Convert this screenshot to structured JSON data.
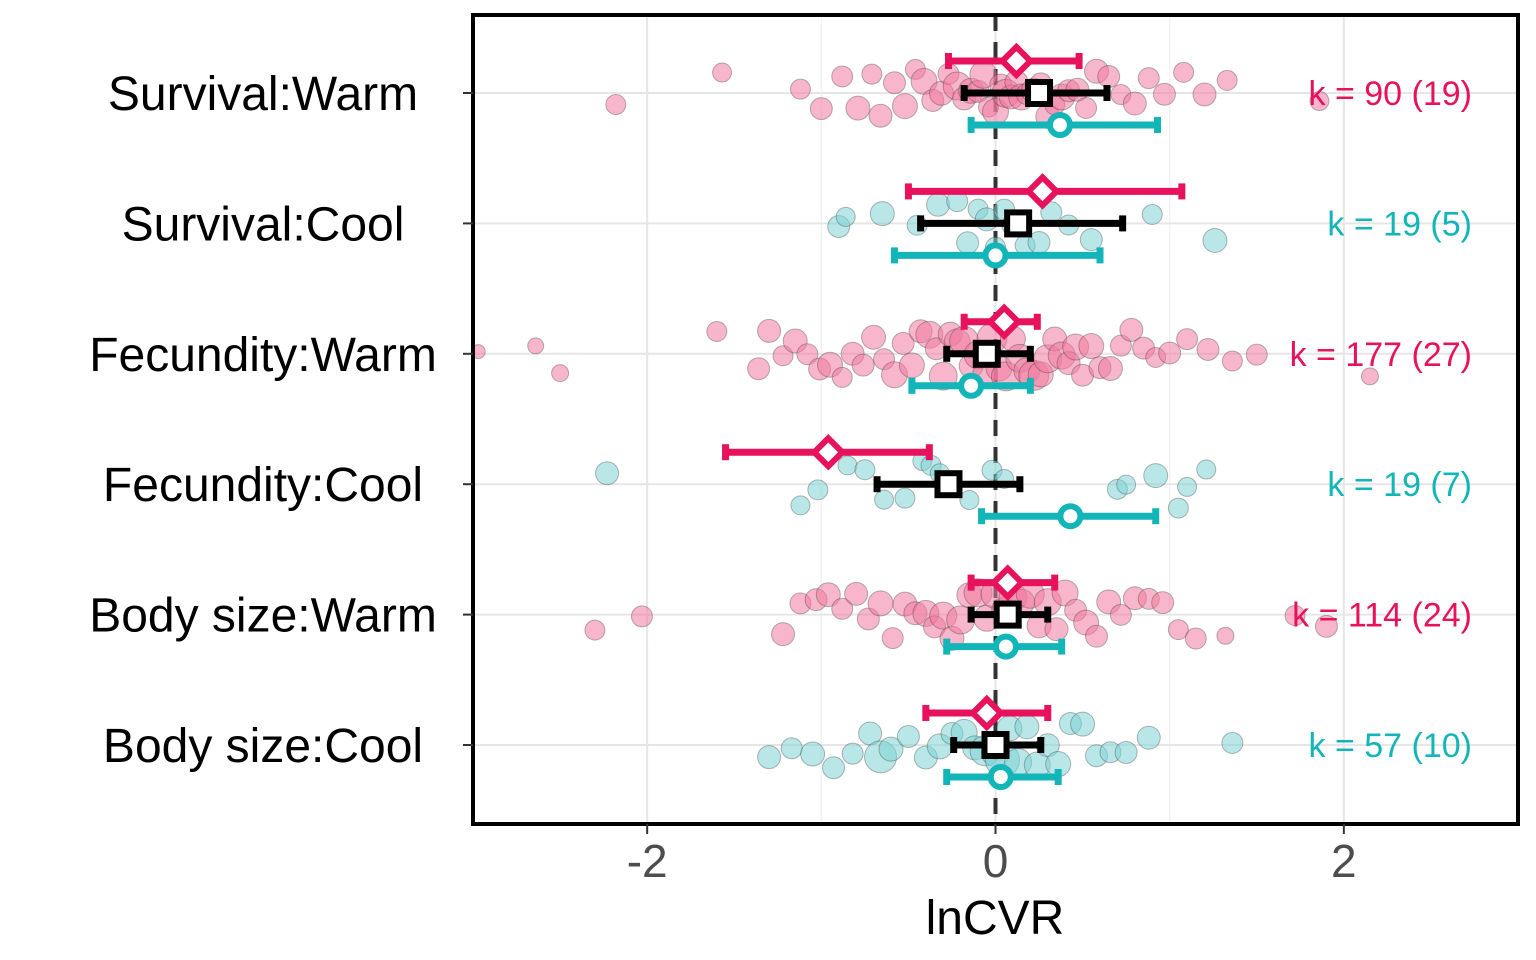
{
  "chart_data": {
    "type": "scatter",
    "subtype": "orchard-plot",
    "xlabel": "lnCVR",
    "ylabel": "",
    "xlim": [
      -3.0,
      3.0
    ],
    "x_ticks": [
      -2,
      0,
      2
    ],
    "reference_line_x": 0,
    "grid": true,
    "colors": {
      "warm": "#e8115c",
      "cool": "#12b5b8",
      "overall": "#000000",
      "warm_fill": "#f07aa1",
      "cool_fill": "#7fd4d5"
    },
    "categories": [
      "Survival:Warm",
      "Survival:Cool",
      "Fecundity:Warm",
      "Fecundity:Cool",
      "Body size:Warm",
      "Body size:Cool"
    ],
    "rows": [
      {
        "label": "Survival:Warm",
        "group": "warm",
        "k_label": "k = 90 (19)",
        "diamond": {
          "est": 0.12,
          "lo": -0.27,
          "hi": 0.48
        },
        "square": {
          "est": 0.25,
          "lo": -0.18,
          "hi": 0.64
        },
        "circle": {
          "est": 0.37,
          "lo": -0.14,
          "hi": 0.93
        },
        "points": [
          {
            "x": -2.18,
            "s": 0.6
          },
          {
            "x": -1.57,
            "s": 0.55
          },
          {
            "x": -1.12,
            "s": 0.6
          },
          {
            "x": -1.0,
            "s": 0.7
          },
          {
            "x": -0.88,
            "s": 0.65
          },
          {
            "x": -0.79,
            "s": 0.8
          },
          {
            "x": -0.71,
            "s": 0.6
          },
          {
            "x": -0.66,
            "s": 0.75
          },
          {
            "x": -0.58,
            "s": 0.7
          },
          {
            "x": -0.52,
            "s": 0.85
          },
          {
            "x": -0.46,
            "s": 0.6
          },
          {
            "x": -0.41,
            "s": 0.9
          },
          {
            "x": -0.36,
            "s": 0.7
          },
          {
            "x": -0.31,
            "s": 0.8
          },
          {
            "x": -0.27,
            "s": 0.65
          },
          {
            "x": -0.22,
            "s": 1.0
          },
          {
            "x": -0.18,
            "s": 0.75
          },
          {
            "x": -0.14,
            "s": 0.85
          },
          {
            "x": -0.1,
            "s": 0.7
          },
          {
            "x": -0.07,
            "s": 0.95
          },
          {
            "x": -0.04,
            "s": 0.6
          },
          {
            "x": 0.0,
            "s": 0.9
          },
          {
            "x": 0.03,
            "s": 0.7
          },
          {
            "x": 0.06,
            "s": 1.0
          },
          {
            "x": 0.09,
            "s": 0.8
          },
          {
            "x": 0.12,
            "s": 0.75
          },
          {
            "x": 0.15,
            "s": 0.9
          },
          {
            "x": 0.18,
            "s": 0.65
          },
          {
            "x": 0.22,
            "s": 0.85
          },
          {
            "x": 0.26,
            "s": 0.7
          },
          {
            "x": 0.3,
            "s": 0.8
          },
          {
            "x": 0.34,
            "s": 0.6
          },
          {
            "x": 0.38,
            "s": 0.9
          },
          {
            "x": 0.42,
            "s": 0.7
          },
          {
            "x": 0.47,
            "s": 0.75
          },
          {
            "x": 0.52,
            "s": 0.65
          },
          {
            "x": 0.58,
            "s": 0.8
          },
          {
            "x": 0.65,
            "s": 0.7
          },
          {
            "x": 0.72,
            "s": 0.6
          },
          {
            "x": 0.8,
            "s": 0.75
          },
          {
            "x": 0.88,
            "s": 0.65
          },
          {
            "x": 0.97,
            "s": 0.7
          },
          {
            "x": 1.08,
            "s": 0.6
          },
          {
            "x": 1.2,
            "s": 0.75
          },
          {
            "x": 1.33,
            "s": 0.6
          },
          {
            "x": 1.86,
            "s": 0.55
          }
        ]
      },
      {
        "label": "Survival:Cool",
        "group": "cool",
        "k_label": "k = 19 (5)",
        "diamond": {
          "est": 0.27,
          "lo": -0.5,
          "hi": 1.07
        },
        "square": {
          "est": 0.13,
          "lo": -0.43,
          "hi": 0.73
        },
        "circle": {
          "est": 0.0,
          "lo": -0.58,
          "hi": 0.6
        },
        "points": [
          {
            "x": -0.9,
            "s": 0.7
          },
          {
            "x": -0.86,
            "s": 0.55
          },
          {
            "x": -0.65,
            "s": 0.8
          },
          {
            "x": -0.45,
            "s": 0.6
          },
          {
            "x": -0.33,
            "s": 0.75
          },
          {
            "x": -0.22,
            "s": 0.65
          },
          {
            "x": -0.16,
            "s": 0.7
          },
          {
            "x": -0.1,
            "s": 0.6
          },
          {
            "x": -0.05,
            "s": 0.75
          },
          {
            "x": 0.0,
            "s": 0.6
          },
          {
            "x": 0.05,
            "s": 0.65
          },
          {
            "x": 0.1,
            "s": 0.7
          },
          {
            "x": 0.17,
            "s": 0.6
          },
          {
            "x": 0.25,
            "s": 0.7
          },
          {
            "x": 0.32,
            "s": 0.65
          },
          {
            "x": 0.42,
            "s": 0.6
          },
          {
            "x": 0.55,
            "s": 0.7
          },
          {
            "x": 0.9,
            "s": 0.6
          },
          {
            "x": 1.26,
            "s": 0.8
          }
        ]
      },
      {
        "label": "Fecundity:Warm",
        "group": "warm",
        "k_label": "k = 177 (27)",
        "diamond": {
          "est": 0.05,
          "lo": -0.18,
          "hi": 0.24
        },
        "square": {
          "est": -0.05,
          "lo": -0.28,
          "hi": 0.2
        },
        "circle": {
          "est": -0.14,
          "lo": -0.48,
          "hi": 0.2
        },
        "points": [
          {
            "x": -2.97,
            "s": 0.3
          },
          {
            "x": -2.64,
            "s": 0.4
          },
          {
            "x": -2.5,
            "s": 0.45
          },
          {
            "x": -1.6,
            "s": 0.6
          },
          {
            "x": -1.36,
            "s": 0.7
          },
          {
            "x": -1.3,
            "s": 0.75
          },
          {
            "x": -1.22,
            "s": 0.6
          },
          {
            "x": -1.15,
            "s": 0.8
          },
          {
            "x": -1.08,
            "s": 0.65
          },
          {
            "x": -1.01,
            "s": 0.7
          },
          {
            "x": -0.95,
            "s": 0.85
          },
          {
            "x": -0.88,
            "s": 0.6
          },
          {
            "x": -0.82,
            "s": 0.75
          },
          {
            "x": -0.76,
            "s": 0.7
          },
          {
            "x": -0.7,
            "s": 0.8
          },
          {
            "x": -0.64,
            "s": 0.65
          },
          {
            "x": -0.58,
            "s": 0.9
          },
          {
            "x": -0.53,
            "s": 0.7
          },
          {
            "x": -0.48,
            "s": 0.85
          },
          {
            "x": -0.43,
            "s": 0.75
          },
          {
            "x": -0.38,
            "s": 0.95
          },
          {
            "x": -0.34,
            "s": 0.7
          },
          {
            "x": -0.3,
            "s": 1.0
          },
          {
            "x": -0.26,
            "s": 0.8
          },
          {
            "x": -0.22,
            "s": 0.9
          },
          {
            "x": -0.18,
            "s": 1.05
          },
          {
            "x": -0.14,
            "s": 0.8
          },
          {
            "x": -0.1,
            "s": 1.0
          },
          {
            "x": -0.06,
            "s": 0.85
          },
          {
            "x": -0.02,
            "s": 1.1
          },
          {
            "x": 0.02,
            "s": 0.9
          },
          {
            "x": 0.06,
            "s": 1.05
          },
          {
            "x": 0.1,
            "s": 0.85
          },
          {
            "x": 0.14,
            "s": 1.0
          },
          {
            "x": 0.18,
            "s": 0.9
          },
          {
            "x": 0.22,
            "s": 1.1
          },
          {
            "x": 0.26,
            "s": 0.85
          },
          {
            "x": 0.3,
            "s": 1.0
          },
          {
            "x": 0.34,
            "s": 0.8
          },
          {
            "x": 0.38,
            "s": 0.95
          },
          {
            "x": 0.42,
            "s": 0.75
          },
          {
            "x": 0.46,
            "s": 0.9
          },
          {
            "x": 0.5,
            "s": 0.7
          },
          {
            "x": 0.55,
            "s": 0.85
          },
          {
            "x": 0.6,
            "s": 0.7
          },
          {
            "x": 0.66,
            "s": 0.8
          },
          {
            "x": 0.72,
            "s": 0.65
          },
          {
            "x": 0.78,
            "s": 0.75
          },
          {
            "x": 0.85,
            "s": 0.7
          },
          {
            "x": 0.92,
            "s": 0.6
          },
          {
            "x": 1.0,
            "s": 0.7
          },
          {
            "x": 1.1,
            "s": 0.65
          },
          {
            "x": 1.22,
            "s": 0.7
          },
          {
            "x": 1.36,
            "s": 0.6
          },
          {
            "x": 1.5,
            "s": 0.65
          },
          {
            "x": 2.15,
            "s": 0.45
          }
        ]
      },
      {
        "label": "Fecundity:Cool",
        "group": "cool",
        "k_label": "k = 19 (7)",
        "diamond": {
          "est": -0.96,
          "lo": -1.55,
          "hi": -0.38
        },
        "square": {
          "est": -0.27,
          "lo": -0.68,
          "hi": 0.14
        },
        "circle": {
          "est": 0.43,
          "lo": -0.08,
          "hi": 0.92
        },
        "points": [
          {
            "x": -2.23,
            "s": 0.75
          },
          {
            "x": -1.12,
            "s": 0.55
          },
          {
            "x": -1.02,
            "s": 0.6
          },
          {
            "x": -0.85,
            "s": 0.55
          },
          {
            "x": -0.75,
            "s": 0.6
          },
          {
            "x": -0.64,
            "s": 0.55
          },
          {
            "x": -0.52,
            "s": 0.6
          },
          {
            "x": -0.42,
            "s": 0.55
          },
          {
            "x": -0.37,
            "s": 0.6
          },
          {
            "x": -0.32,
            "s": 0.55
          },
          {
            "x": -0.15,
            "s": 0.55
          },
          {
            "x": -0.02,
            "s": 0.6
          },
          {
            "x": 0.05,
            "s": 0.55
          },
          {
            "x": 0.7,
            "s": 0.6
          },
          {
            "x": 0.75,
            "s": 0.55
          },
          {
            "x": 0.92,
            "s": 0.8
          },
          {
            "x": 1.05,
            "s": 0.6
          },
          {
            "x": 1.1,
            "s": 0.55
          },
          {
            "x": 1.21,
            "s": 0.55
          }
        ]
      },
      {
        "label": "Body size:Warm",
        "group": "warm",
        "k_label": "k = 114 (24)",
        "diamond": {
          "est": 0.07,
          "lo": -0.14,
          "hi": 0.34
        },
        "square": {
          "est": 0.07,
          "lo": -0.14,
          "hi": 0.3
        },
        "circle": {
          "est": 0.06,
          "lo": -0.28,
          "hi": 0.38
        },
        "points": [
          {
            "x": -2.3,
            "s": 0.6
          },
          {
            "x": -2.03,
            "s": 0.65
          },
          {
            "x": -1.22,
            "s": 0.75
          },
          {
            "x": -1.12,
            "s": 0.65
          },
          {
            "x": -1.03,
            "s": 0.7
          },
          {
            "x": -0.96,
            "s": 0.8
          },
          {
            "x": -0.88,
            "s": 0.65
          },
          {
            "x": -0.8,
            "s": 0.75
          },
          {
            "x": -0.73,
            "s": 0.7
          },
          {
            "x": -0.66,
            "s": 0.85
          },
          {
            "x": -0.59,
            "s": 0.65
          },
          {
            "x": -0.52,
            "s": 0.8
          },
          {
            "x": -0.46,
            "s": 0.75
          },
          {
            "x": -0.4,
            "s": 0.9
          },
          {
            "x": -0.35,
            "s": 0.7
          },
          {
            "x": -0.3,
            "s": 0.95
          },
          {
            "x": -0.25,
            "s": 0.8
          },
          {
            "x": -0.2,
            "s": 1.0
          },
          {
            "x": -0.15,
            "s": 0.85
          },
          {
            "x": -0.1,
            "s": 1.0
          },
          {
            "x": -0.05,
            "s": 0.9
          },
          {
            "x": 0.0,
            "s": 1.05
          },
          {
            "x": 0.05,
            "s": 0.85
          },
          {
            "x": 0.1,
            "s": 1.0
          },
          {
            "x": 0.15,
            "s": 0.9
          },
          {
            "x": 0.2,
            "s": 1.0
          },
          {
            "x": 0.25,
            "s": 0.8
          },
          {
            "x": 0.3,
            "s": 0.95
          },
          {
            "x": 0.35,
            "s": 0.75
          },
          {
            "x": 0.4,
            "s": 0.9
          },
          {
            "x": 0.46,
            "s": 0.7
          },
          {
            "x": 0.52,
            "s": 0.85
          },
          {
            "x": 0.58,
            "s": 0.7
          },
          {
            "x": 0.65,
            "s": 0.8
          },
          {
            "x": 0.72,
            "s": 0.65
          },
          {
            "x": 0.8,
            "s": 0.75
          },
          {
            "x": 0.88,
            "s": 0.65
          },
          {
            "x": 0.96,
            "s": 0.7
          },
          {
            "x": 1.05,
            "s": 0.6
          },
          {
            "x": 1.15,
            "s": 0.65
          },
          {
            "x": 1.32,
            "s": 0.45
          },
          {
            "x": 1.72,
            "s": 0.6
          },
          {
            "x": 1.9,
            "s": 0.7
          }
        ]
      },
      {
        "label": "Body size:Cool",
        "group": "cool",
        "k_label": "k = 57 (10)",
        "diamond": {
          "est": -0.05,
          "lo": -0.4,
          "hi": 0.3
        },
        "square": {
          "est": 0.0,
          "lo": -0.24,
          "hi": 0.26
        },
        "circle": {
          "est": 0.03,
          "lo": -0.28,
          "hi": 0.36
        },
        "points": [
          {
            "x": -1.3,
            "s": 0.75
          },
          {
            "x": -1.17,
            "s": 0.65
          },
          {
            "x": -1.05,
            "s": 0.8
          },
          {
            "x": -0.93,
            "s": 0.7
          },
          {
            "x": -0.82,
            "s": 0.65
          },
          {
            "x": -0.72,
            "s": 0.75
          },
          {
            "x": -0.66,
            "s": 1.2
          },
          {
            "x": -0.6,
            "s": 0.8
          },
          {
            "x": -0.5,
            "s": 0.7
          },
          {
            "x": -0.4,
            "s": 0.75
          },
          {
            "x": -0.32,
            "s": 0.85
          },
          {
            "x": -0.25,
            "s": 0.7
          },
          {
            "x": -0.18,
            "s": 0.9
          },
          {
            "x": -0.12,
            "s": 0.8
          },
          {
            "x": -0.06,
            "s": 1.1
          },
          {
            "x": 0.0,
            "s": 1.0
          },
          {
            "x": 0.04,
            "s": 1.3
          },
          {
            "x": 0.08,
            "s": 0.85
          },
          {
            "x": 0.13,
            "s": 0.95
          },
          {
            "x": 0.18,
            "s": 0.8
          },
          {
            "x": 0.24,
            "s": 0.9
          },
          {
            "x": 0.3,
            "s": 0.75
          },
          {
            "x": 0.36,
            "s": 0.85
          },
          {
            "x": 0.43,
            "s": 0.7
          },
          {
            "x": 0.5,
            "s": 0.8
          },
          {
            "x": 0.58,
            "s": 0.7
          },
          {
            "x": 0.66,
            "s": 0.65
          },
          {
            "x": 0.75,
            "s": 0.7
          },
          {
            "x": 0.88,
            "s": 0.75
          },
          {
            "x": 1.36,
            "s": 0.65
          }
        ]
      }
    ]
  }
}
